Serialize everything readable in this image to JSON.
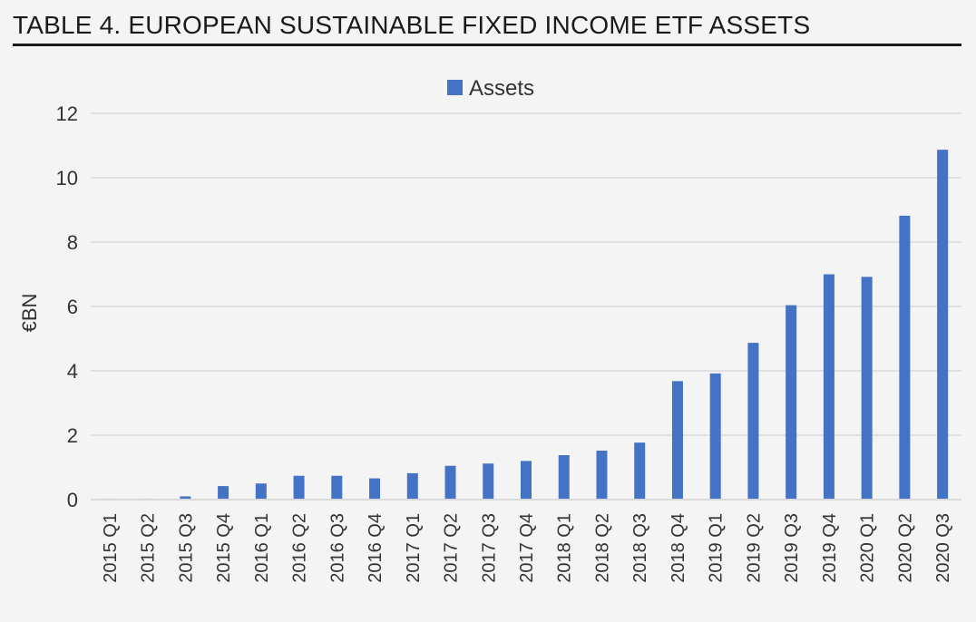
{
  "page": {
    "title": "TABLE 4. EUROPEAN SUSTAINABLE FIXED INCOME ETF ASSETS"
  },
  "colors": {
    "bar": "#4472c4",
    "grid": "#d9d9d9",
    "text": "#333333"
  },
  "chart_data": {
    "type": "bar",
    "title": "TABLE 4. EUROPEAN SUSTAINABLE FIXED INCOME ETF ASSETS",
    "xlabel": "",
    "ylabel": "€BN",
    "ylim": [
      0,
      12
    ],
    "yticks": [
      0,
      2,
      4,
      6,
      8,
      10,
      12
    ],
    "grid": true,
    "legend": "top-center",
    "categories": [
      "2015 Q1",
      "2015 Q2",
      "2015 Q3",
      "2015 Q4",
      "2016 Q1",
      "2016 Q2",
      "2016 Q3",
      "2016 Q4",
      "2017 Q1",
      "2017 Q2",
      "2017 Q3",
      "2017 Q4",
      "2018 Q1",
      "2018 Q2",
      "2018 Q3",
      "2018 Q4",
      "2019 Q1",
      "2019 Q2",
      "2019 Q3",
      "2019 Q4",
      "2020 Q1",
      "2020 Q2",
      "2020 Q3"
    ],
    "series": [
      {
        "name": "Assets",
        "values": [
          0.03,
          0.03,
          0.1,
          0.42,
          0.5,
          0.74,
          0.74,
          0.66,
          0.82,
          1.05,
          1.12,
          1.2,
          1.38,
          1.52,
          1.77,
          3.68,
          3.92,
          4.87,
          6.04,
          7.0,
          6.92,
          8.82,
          10.87
        ]
      }
    ]
  }
}
